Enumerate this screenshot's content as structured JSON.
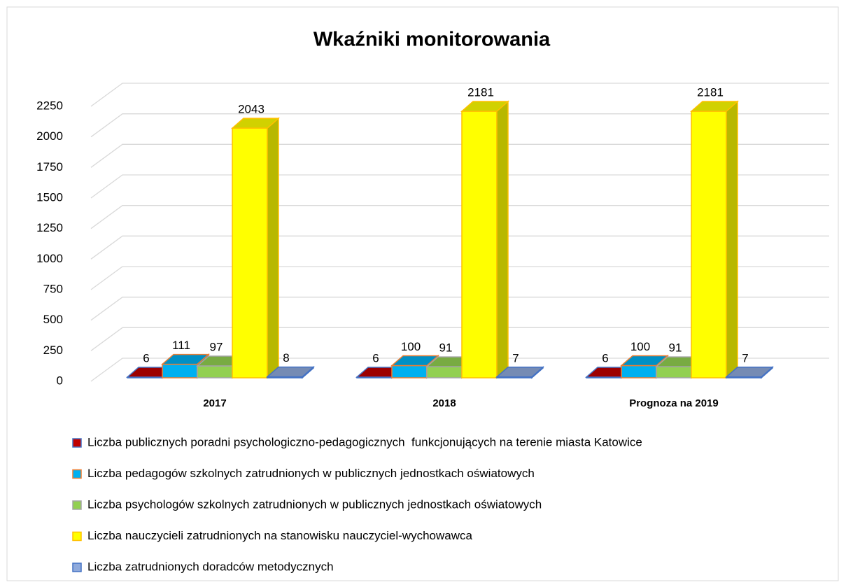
{
  "chart_data": {
    "type": "bar3d",
    "title": "Wkaźniki monitorowania",
    "categories": [
      "2017",
      "2018",
      "Prognoza na 2019"
    ],
    "series": [
      {
        "name": "Liczba publicznych poradni psychologiczno-pedagogicznych  funkcjonujących na terenie miasta Katowice",
        "color": "#c00000",
        "edge_color": "#4472c4",
        "values": [
          6,
          6,
          6
        ]
      },
      {
        "name": "Liczba pedagogów szkolnych zatrudnionych w publicznych jednostkach oświatowych",
        "color": "#00b0f0",
        "edge_color": "#ed7d31",
        "values": [
          111,
          100,
          100
        ]
      },
      {
        "name": "Liczba psychologów szkolnych zatrudnionych w publicznych jednostkach oświatowych",
        "color": "#92d050",
        "edge_color": "#a5a5a5",
        "values": [
          97,
          91,
          91
        ]
      },
      {
        "name": "Liczba nauczycieli zatrudnionych na stanowisku nauczyciel-wychowawca",
        "color": "#ffff00",
        "edge_color": "#ffc000",
        "values": [
          2043,
          2181,
          2181
        ]
      },
      {
        "name": "Liczba zatrudnionych doradców metodycznych",
        "color": "#8faadc",
        "edge_color": "#4472c4",
        "values": [
          8,
          7,
          7
        ]
      }
    ],
    "ylim": [
      0,
      2250
    ],
    "yticks": [
      0,
      250,
      500,
      750,
      1000,
      1250,
      1500,
      1750,
      2000,
      2250
    ],
    "grid": true,
    "legend": "bottom"
  }
}
